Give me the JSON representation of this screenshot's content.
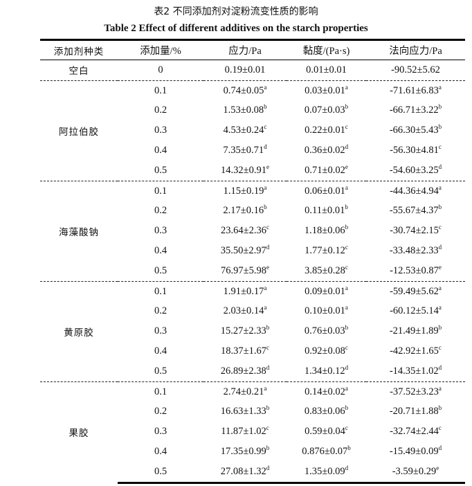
{
  "title_cn": "表2  不同添加剂对淀粉流变性质的影响",
  "title_en": "Table 2 Effect of different additives on the starch properties",
  "headers": [
    "添加剂种类",
    "添加量/%",
    "应力/Pa",
    "黏度/(Pa·s)",
    "法向应力/Pa"
  ],
  "blank": {
    "label": "空白",
    "amount": "0",
    "stress": "0.19±0.01",
    "viscosity": "0.01±0.01",
    "normal": "-90.52±5.62"
  },
  "groups": [
    {
      "label": "阿拉伯胶",
      "rows": [
        {
          "amount": "0.1",
          "stress": {
            "v": "0.74±0.05",
            "s": "a"
          },
          "viscosity": {
            "v": "0.03±0.01",
            "s": "a"
          },
          "normal": {
            "v": "-71.61±6.83",
            "s": "a"
          }
        },
        {
          "amount": "0.2",
          "stress": {
            "v": "1.53±0.08",
            "s": "b"
          },
          "viscosity": {
            "v": "0.07±0.03",
            "s": "b"
          },
          "normal": {
            "v": "-66.71±3.22",
            "s": "b"
          }
        },
        {
          "amount": "0.3",
          "stress": {
            "v": "4.53±0.24",
            "s": "c"
          },
          "viscosity": {
            "v": "0.22±0.01",
            "s": "c"
          },
          "normal": {
            "v": "-66.30±5.43",
            "s": "b"
          }
        },
        {
          "amount": "0.4",
          "stress": {
            "v": "7.35±0.71",
            "s": "d"
          },
          "viscosity": {
            "v": "0.36±0.02",
            "s": "d"
          },
          "normal": {
            "v": "-56.30±4.81",
            "s": "c"
          }
        },
        {
          "amount": "0.5",
          "stress": {
            "v": "14.32±0.91",
            "s": "e"
          },
          "viscosity": {
            "v": "0.71±0.02",
            "s": "e"
          },
          "normal": {
            "v": "-54.60±3.25",
            "s": "d"
          }
        }
      ]
    },
    {
      "label": "海藻酸钠",
      "rows": [
        {
          "amount": "0.1",
          "stress": {
            "v": "1.15±0.19",
            "s": "a"
          },
          "viscosity": {
            "v": "0.06±0.01",
            "s": "a"
          },
          "normal": {
            "v": "-44.36±4.94",
            "s": "a"
          }
        },
        {
          "amount": "0.2",
          "stress": {
            "v": "2.17±0.16",
            "s": "b"
          },
          "viscosity": {
            "v": "0.11±0.01",
            "s": "b"
          },
          "normal": {
            "v": "-55.67±4.37",
            "s": "b"
          }
        },
        {
          "amount": "0.3",
          "stress": {
            "v": "23.64±2.36",
            "s": "c"
          },
          "viscosity": {
            "v": "1.18±0.06",
            "s": "b"
          },
          "normal": {
            "v": "-30.74±2.15",
            "s": "c"
          }
        },
        {
          "amount": "0.4",
          "stress": {
            "v": "35.50±2.97",
            "s": "d"
          },
          "viscosity": {
            "v": "1.77±0.12",
            "s": "c"
          },
          "normal": {
            "v": "-33.48±2.33",
            "s": "d"
          }
        },
        {
          "amount": "0.5",
          "stress": {
            "v": "76.97±5.98",
            "s": "e"
          },
          "viscosity": {
            "v": "3.85±0.28",
            "s": "c"
          },
          "normal": {
            "v": "-12.53±0.87",
            "s": "e"
          }
        }
      ]
    },
    {
      "label": "黄原胶",
      "rows": [
        {
          "amount": "0.1",
          "stress": {
            "v": "1.91±0.17",
            "s": "a"
          },
          "viscosity": {
            "v": "0.09±0.01",
            "s": "a"
          },
          "normal": {
            "v": "-59.49±5.62",
            "s": "a"
          }
        },
        {
          "amount": "0.2",
          "stress": {
            "v": "2.03±0.14",
            "s": "a"
          },
          "viscosity": {
            "v": "0.10±0.01",
            "s": "a"
          },
          "normal": {
            "v": "-60.12±5.14",
            "s": "a"
          }
        },
        {
          "amount": "0.3",
          "stress": {
            "v": "15.27±2.33",
            "s": "b"
          },
          "viscosity": {
            "v": "0.76±0.03",
            "s": "b"
          },
          "normal": {
            "v": "-21.49±1.89",
            "s": "b"
          }
        },
        {
          "amount": "0.4",
          "stress": {
            "v": "18.37±1.67",
            "s": "c"
          },
          "viscosity": {
            "v": "0.92±0.08",
            "s": "c"
          },
          "normal": {
            "v": "-42.92±1.65",
            "s": "c"
          }
        },
        {
          "amount": "0.5",
          "stress": {
            "v": "26.89±2.38",
            "s": "d"
          },
          "viscosity": {
            "v": "1.34±0.12",
            "s": "d"
          },
          "normal": {
            "v": "-14.35±1.02",
            "s": "d"
          }
        }
      ]
    },
    {
      "label": "果胶",
      "rows": [
        {
          "amount": "0.1",
          "stress": {
            "v": "2.74±0.21",
            "s": "a"
          },
          "viscosity": {
            "v": "0.14±0.02",
            "s": "a"
          },
          "normal": {
            "v": "-37.52±3.23",
            "s": "a"
          }
        },
        {
          "amount": "0.2",
          "stress": {
            "v": "16.63±1.33",
            "s": "b"
          },
          "viscosity": {
            "v": "0.83±0.06",
            "s": "b"
          },
          "normal": {
            "v": "-20.71±1.88",
            "s": "b"
          }
        },
        {
          "amount": "0.3",
          "stress": {
            "v": "11.87±1.02",
            "s": "c"
          },
          "viscosity": {
            "v": "0.59±0.04",
            "s": "c"
          },
          "normal": {
            "v": "-32.74±2.44",
            "s": "c"
          }
        },
        {
          "amount": "0.4",
          "stress": {
            "v": "17.35±0.99",
            "s": "b"
          },
          "viscosity": {
            "v": "0.876±0.07",
            "s": "b"
          },
          "normal": {
            "v": "-15.49±0.09",
            "s": "d"
          }
        },
        {
          "amount": "0.5",
          "stress": {
            "v": "27.08±1.32",
            "s": "d"
          },
          "viscosity": {
            "v": "1.35±0.09",
            "s": "d"
          },
          "normal": {
            "v": "-3.59±0.29",
            "s": "e"
          }
        }
      ]
    }
  ]
}
